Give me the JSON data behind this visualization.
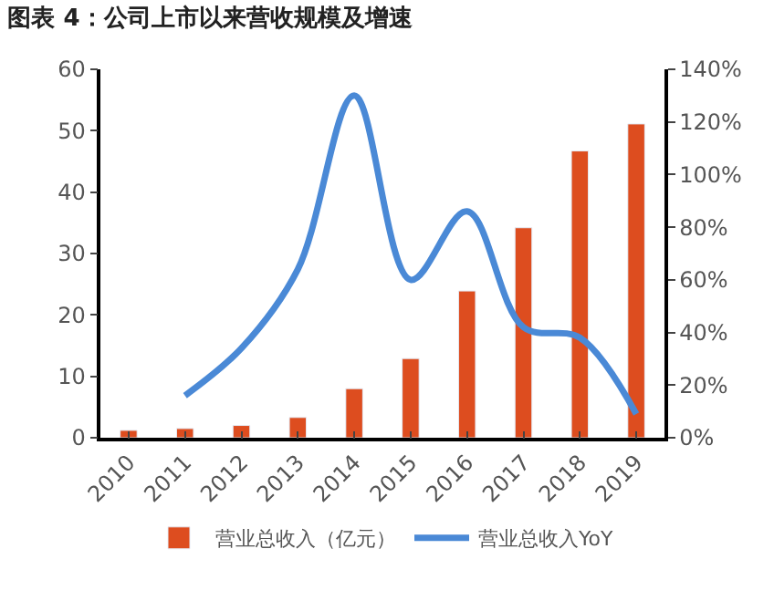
{
  "chart_data": {
    "type": "bar",
    "title": "图表 4：公司上市以来营收规模及增速",
    "categories": [
      "2010",
      "2011",
      "2012",
      "2013",
      "2014",
      "2015",
      "2016",
      "2017",
      "2018",
      "2019"
    ],
    "series": [
      {
        "name": "营业总收入（亿元）",
        "color": "#dd4d1f",
        "values": [
          1.2,
          1.5,
          2.0,
          3.3,
          8.0,
          12.9,
          23.9,
          34.2,
          46.7,
          51.1
        ]
      },
      {
        "name": "营业总收入YoY",
        "type": "line",
        "axis": "y2",
        "color": "#4a89d6",
        "values": [
          null,
          16,
          34,
          64,
          130,
          60,
          86,
          42,
          38,
          9
        ]
      }
    ],
    "ylim": [
      0,
      60
    ],
    "yticks": [
      0,
      10,
      20,
      30,
      40,
      50,
      60
    ],
    "y2lim": [
      0,
      140
    ],
    "y2ticks": [
      {
        "value": 0,
        "label": "0%"
      },
      {
        "value": 20,
        "label": "20%"
      },
      {
        "value": 40,
        "label": "40%"
      },
      {
        "value": 60,
        "label": "60%"
      },
      {
        "value": 80,
        "label": "80%"
      },
      {
        "value": 100,
        "label": "100%"
      },
      {
        "value": 120,
        "label": "120%"
      },
      {
        "value": 140,
        "label": "140%"
      }
    ],
    "legend": "bottom"
  }
}
